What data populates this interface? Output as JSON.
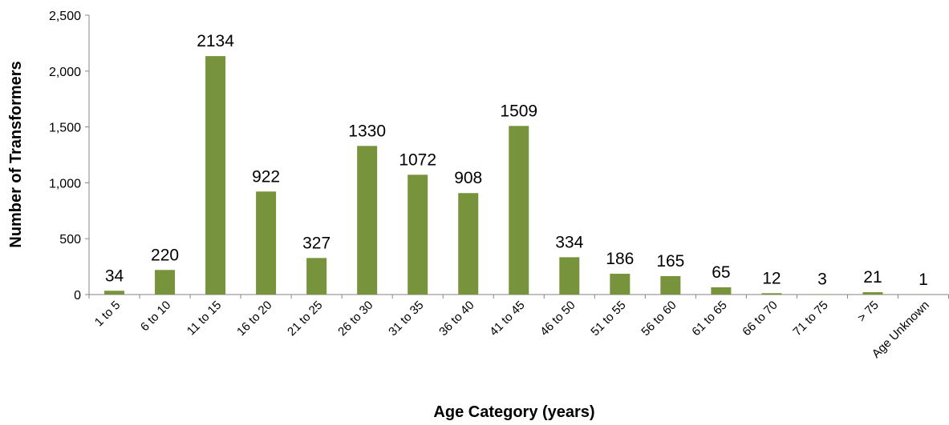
{
  "chart_data": {
    "type": "bar",
    "title": "",
    "xlabel": "Age Category (years)",
    "ylabel": "Number of Transformers",
    "ylim": [
      0,
      2500
    ],
    "yticks": [
      "0",
      "500",
      "1,000",
      "1,500",
      "2,000",
      "2,500"
    ],
    "ytick_values": [
      0,
      500,
      1000,
      1500,
      2000,
      2500
    ],
    "grid": false,
    "bar_color": "#77933c",
    "categories": [
      "1 to 5",
      "6 to 10",
      "11 to 15",
      "16 to 20",
      "21 to 25",
      "26 to 30",
      "31 to 35",
      "36 to 40",
      "41 to 45",
      "46 to 50",
      "51 to 55",
      "56 to 60",
      "61 to 65",
      "66 to 70",
      "71 to 75",
      "> 75",
      "Age Unknown"
    ],
    "values": [
      34,
      220,
      2134,
      922,
      327,
      1330,
      1072,
      908,
      1509,
      334,
      186,
      165,
      65,
      12,
      3,
      21,
      1
    ],
    "data_labels": [
      "34",
      "220",
      "2134",
      "922",
      "327",
      "1330",
      "1072",
      "908",
      "1509",
      "334",
      "186",
      "165",
      "65",
      "12",
      "3",
      "21",
      "1"
    ]
  }
}
